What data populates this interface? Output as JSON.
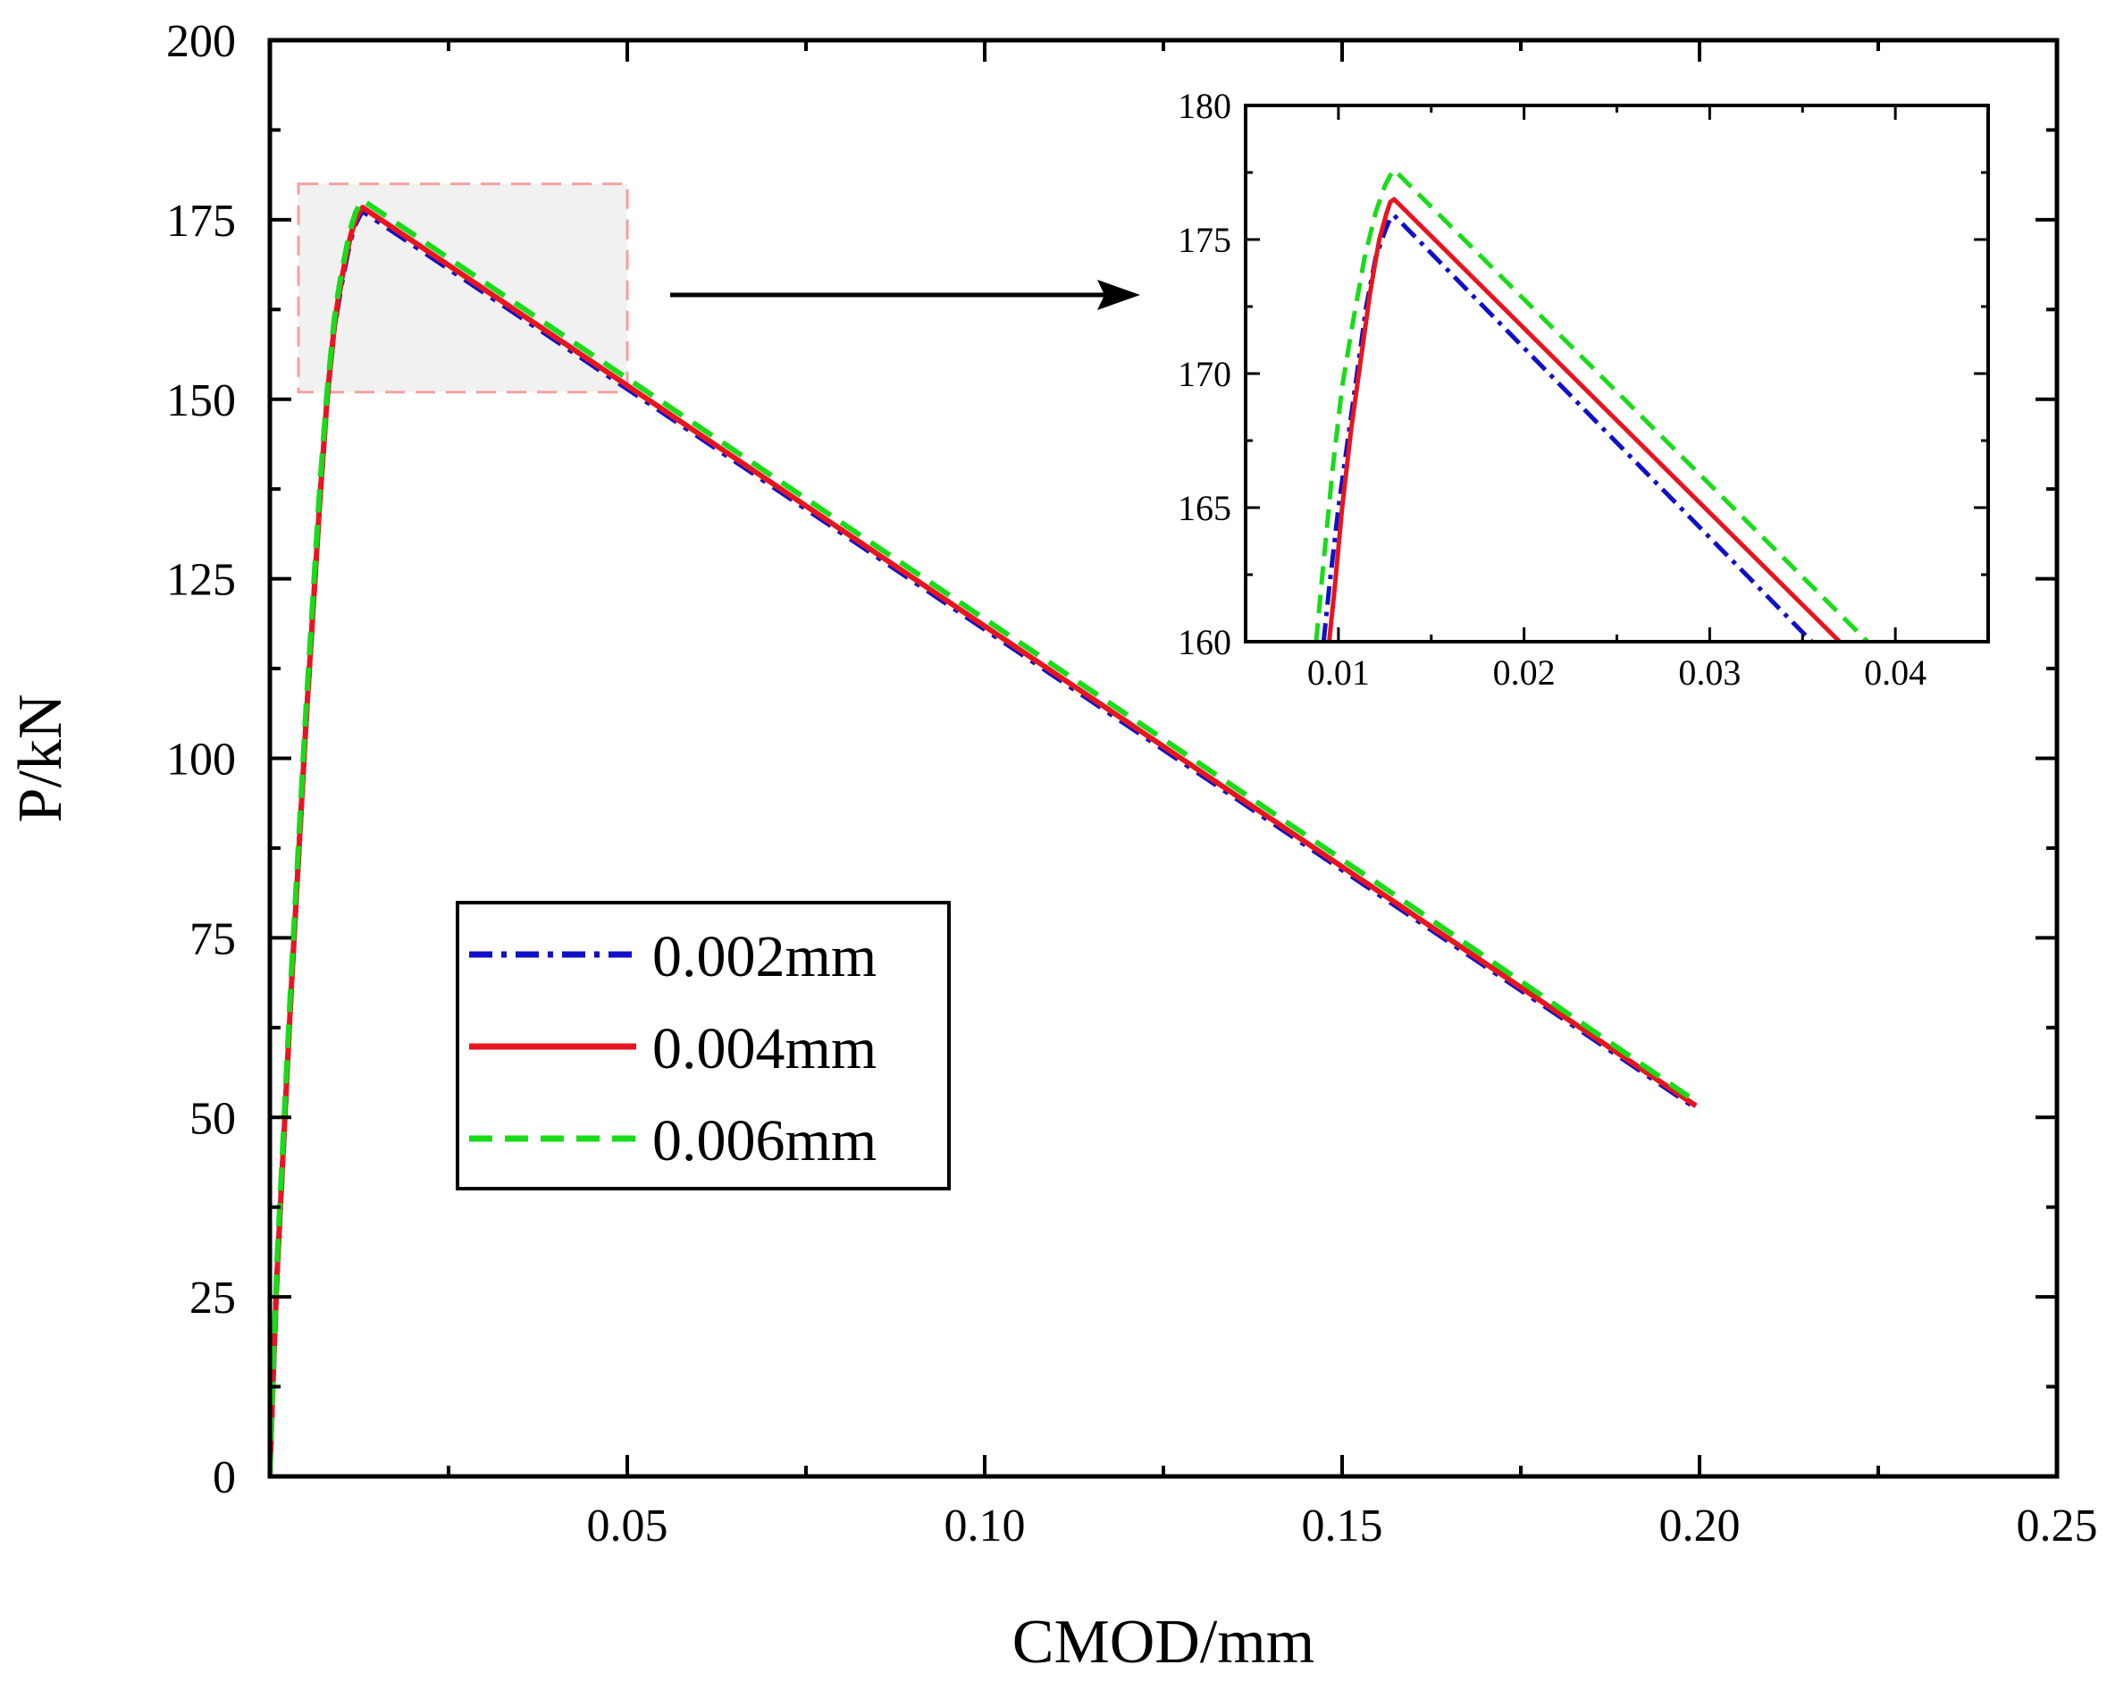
{
  "chart_data": [
    {
      "id": "main",
      "type": "line",
      "title": "",
      "xlabel": "CMOD/mm",
      "ylabel": "P/kN",
      "xlim": [
        0,
        0.25
      ],
      "ylim": [
        0,
        200
      ],
      "xticks": [
        0.05,
        0.1,
        0.15,
        0.2,
        0.25
      ],
      "xtick_labels": [
        "0.05",
        "0.10",
        "0.15",
        "0.20",
        "0.25"
      ],
      "yticks": [
        0,
        25,
        50,
        75,
        100,
        125,
        150,
        175,
        200
      ],
      "ytick_labels": [
        "0",
        "25",
        "50",
        "75",
        "100",
        "125",
        "150",
        "175",
        "200"
      ],
      "legend_position": "lower-left",
      "highlight_region": {
        "x": [
          0.004,
          0.05
        ],
        "y": [
          151,
          180
        ]
      },
      "series": [
        {
          "name": "0.002mm",
          "color": "#1010c8",
          "style": "dash-dot",
          "x": [
            0,
            0.0005,
            0.001,
            0.002,
            0.003,
            0.004,
            0.005,
            0.006,
            0.007,
            0.008,
            0.009,
            0.0095,
            0.01,
            0.0105,
            0.011,
            0.0115,
            0.012,
            0.0125,
            0.0128,
            0.013,
            0.04,
            0.08,
            0.12,
            0.16,
            0.1995
          ],
          "y": [
            0,
            15,
            28,
            48,
            68,
            86,
            104,
            120,
            136,
            150,
            160,
            163,
            166,
            168.5,
            171,
            173,
            174.5,
            175.5,
            176,
            176.2,
            158.2,
            131.4,
            104.6,
            77.8,
            51.3
          ]
        },
        {
          "name": "0.004mm",
          "color": "#e8141e",
          "style": "solid",
          "x": [
            0,
            0.0005,
            0.001,
            0.002,
            0.003,
            0.004,
            0.005,
            0.006,
            0.007,
            0.008,
            0.009,
            0.0095,
            0.01,
            0.0105,
            0.011,
            0.0115,
            0.012,
            0.0125,
            0.0128,
            0.013,
            0.04,
            0.08,
            0.12,
            0.16,
            0.1995
          ],
          "y": [
            0,
            15,
            28,
            48,
            68,
            86,
            104,
            120,
            136,
            150,
            160,
            163.5,
            166.5,
            169,
            171.5,
            173.5,
            175,
            176,
            176.5,
            176.7,
            158.6,
            131.8,
            105,
            78.2,
            51.6
          ]
        },
        {
          "name": "0.006mm",
          "color": "#18dc18",
          "style": "dashed",
          "x": [
            0,
            0.0005,
            0.001,
            0.002,
            0.003,
            0.004,
            0.005,
            0.006,
            0.007,
            0.008,
            0.009,
            0.0095,
            0.01,
            0.0105,
            0.011,
            0.0115,
            0.012,
            0.0125,
            0.0128,
            0.013,
            0.04,
            0.08,
            0.12,
            0.16,
            0.1995
          ],
          "y": [
            0,
            16,
            30,
            50,
            70,
            88,
            106,
            122,
            138,
            151,
            161,
            164.5,
            167.5,
            170,
            172.5,
            174.5,
            176,
            177,
            177.5,
            177.7,
            159.6,
            132.8,
            106,
            79.2,
            52.2
          ]
        }
      ]
    },
    {
      "id": "inset",
      "type": "line",
      "title": "",
      "xlabel": "",
      "ylabel": "",
      "xlim": [
        0.005,
        0.045
      ],
      "ylim": [
        160,
        180
      ],
      "xticks": [
        0.01,
        0.02,
        0.03,
        0.04
      ],
      "xtick_labels": [
        "0.01",
        "0.02",
        "0.03",
        "0.04"
      ],
      "yticks": [
        160,
        165,
        170,
        175,
        180
      ],
      "ytick_labels": [
        "160",
        "165",
        "170",
        "175",
        "180"
      ],
      "series": [
        {
          "name": "0.002mm",
          "color": "#1010c8",
          "style": "dash-dot",
          "x": [
            0.0092,
            0.0095,
            0.01,
            0.0105,
            0.011,
            0.0115,
            0.012,
            0.0125,
            0.0128,
            0.013,
            0.0355
          ],
          "y": [
            160,
            162,
            165,
            167.5,
            170,
            172.5,
            174.3,
            175.3,
            175.8,
            175.9,
            160
          ]
        },
        {
          "name": "0.004mm",
          "color": "#e8141e",
          "style": "solid",
          "x": [
            0.0095,
            0.0098,
            0.0102,
            0.0107,
            0.0112,
            0.0117,
            0.0122,
            0.0126,
            0.0128,
            0.013,
            0.037
          ],
          "y": [
            160,
            162,
            165,
            168,
            170.5,
            173,
            175,
            176,
            176.4,
            176.5,
            160
          ]
        },
        {
          "name": "0.006mm",
          "color": "#18dc18",
          "style": "dashed",
          "x": [
            0.0088,
            0.0092,
            0.0097,
            0.0102,
            0.0108,
            0.0114,
            0.012,
            0.0125,
            0.0128,
            0.013,
            0.0385
          ],
          "y": [
            160,
            163,
            166.5,
            169.5,
            172,
            174.3,
            176,
            177,
            177.4,
            177.6,
            160
          ]
        }
      ]
    }
  ]
}
